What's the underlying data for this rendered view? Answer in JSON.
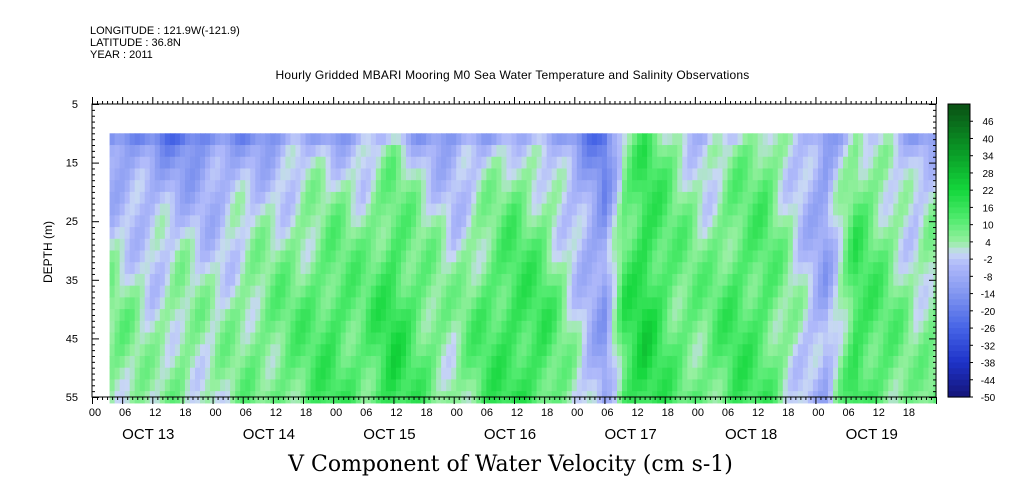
{
  "header": {
    "longitude": "LONGITUDE : 121.9W(-121.9)",
    "latitude": "LATITUDE : 36.8N",
    "year": "YEAR : 2011"
  },
  "chart_data": {
    "type": "heatmap",
    "title": "Hourly Gridded MBARI Mooring M0 Sea Water Temperature and Salinity Observations",
    "xlabel": "V Component of Water Velocity (cm s-1)",
    "ylabel": "DEPTH (m)",
    "y_ticks": [
      5,
      15,
      25,
      35,
      45,
      55
    ],
    "ylim": [
      5,
      55
    ],
    "y_reversed": true,
    "x_hour_ticks": [
      "00",
      "06",
      "12",
      "18",
      "00",
      "06",
      "12",
      "18",
      "00",
      "06",
      "12",
      "18",
      "00",
      "06",
      "12",
      "18",
      "00",
      "06",
      "12",
      "18",
      "00",
      "06",
      "12",
      "18",
      "00",
      "06",
      "12",
      "18"
    ],
    "x_day_labels": [
      "OCT 13",
      "OCT 14",
      "OCT 15",
      "OCT 16",
      "OCT 17",
      "OCT 18",
      "OCT 19"
    ],
    "x_start_hour": 0,
    "x_end_hour": 168,
    "data_start_hour": 3.5,
    "data_min_depth": 10,
    "colorbar": {
      "ticks": [
        46,
        40,
        34,
        28,
        22,
        16,
        10,
        4,
        -2,
        -8,
        -14,
        -20,
        -26,
        -32,
        -38,
        -44,
        -50
      ],
      "range": [
        -50,
        52
      ]
    },
    "regimes": [
      {
        "hour": 3.5,
        "surface": -18,
        "deep": 6
      },
      {
        "hour": 6,
        "surface": -18,
        "deep": 6
      },
      {
        "hour": 12,
        "surface": -16,
        "deep": 2
      },
      {
        "hour": 18,
        "surface": -22,
        "deep": 6
      },
      {
        "hour": 24,
        "surface": -16,
        "deep": 2
      },
      {
        "hour": 30,
        "surface": -14,
        "deep": 6
      },
      {
        "hour": 36,
        "surface": -12,
        "deep": 8
      },
      {
        "hour": 42,
        "surface": -8,
        "deep": 10
      },
      {
        "hour": 48,
        "surface": -10,
        "deep": 14
      },
      {
        "hour": 54,
        "surface": -6,
        "deep": 10
      },
      {
        "hour": 60,
        "surface": -2,
        "deep": 18
      },
      {
        "hour": 66,
        "surface": -10,
        "deep": 10
      },
      {
        "hour": 72,
        "surface": -12,
        "deep": 4
      },
      {
        "hour": 78,
        "surface": -10,
        "deep": 12
      },
      {
        "hour": 84,
        "surface": -2,
        "deep": 16
      },
      {
        "hour": 90,
        "surface": -8,
        "deep": 14
      },
      {
        "hour": 96,
        "surface": -14,
        "deep": 2
      },
      {
        "hour": 102,
        "surface": -22,
        "deep": -10
      },
      {
        "hour": 106,
        "surface": 2,
        "deep": 14
      },
      {
        "hour": 110,
        "surface": 12,
        "deep": 20
      },
      {
        "hour": 116,
        "surface": 4,
        "deep": 10
      },
      {
        "hour": 122,
        "surface": -6,
        "deep": 8
      },
      {
        "hour": 128,
        "surface": 0,
        "deep": 14
      },
      {
        "hour": 134,
        "surface": 8,
        "deep": 12
      },
      {
        "hour": 140,
        "surface": -2,
        "deep": 2
      },
      {
        "hour": 146,
        "surface": -14,
        "deep": -8
      },
      {
        "hour": 152,
        "surface": 4,
        "deep": 16
      },
      {
        "hour": 158,
        "surface": -2,
        "deep": 10
      },
      {
        "hour": 164,
        "surface": -12,
        "deep": 4
      },
      {
        "hour": 168,
        "surface": -8,
        "deep": 8
      }
    ]
  }
}
